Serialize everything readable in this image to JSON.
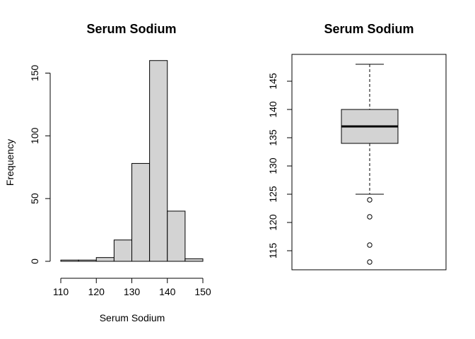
{
  "chart_data": [
    {
      "type": "bar",
      "subtype": "histogram",
      "title": "Serum Sodium",
      "xlabel": "Serum Sodium",
      "ylabel": "Frequency",
      "bins": [
        {
          "from": 110,
          "to": 115,
          "count": 1
        },
        {
          "from": 115,
          "to": 120,
          "count": 1
        },
        {
          "from": 120,
          "to": 125,
          "count": 3
        },
        {
          "from": 125,
          "to": 130,
          "count": 17
        },
        {
          "from": 130,
          "to": 135,
          "count": 78
        },
        {
          "from": 135,
          "to": 140,
          "count": 160
        },
        {
          "from": 140,
          "to": 145,
          "count": 40
        },
        {
          "from": 145,
          "to": 150,
          "count": 2
        }
      ],
      "xlim": [
        110,
        150
      ],
      "ylim": [
        0,
        160
      ],
      "xticks": [
        "110",
        "120",
        "130",
        "140",
        "150"
      ],
      "yticks": [
        "0",
        "50",
        "100",
        "150"
      ],
      "bar_color": "#d3d3d3"
    },
    {
      "type": "boxplot",
      "title": "Serum Sodium",
      "ylim": [
        113,
        148
      ],
      "stats": {
        "whisker_low": 125,
        "q1": 134,
        "median": 137,
        "q3": 140,
        "whisker_high": 148
      },
      "outliers": [
        124,
        121,
        116,
        113
      ],
      "yticks": [
        "115",
        "120",
        "125",
        "130",
        "135",
        "140",
        "145"
      ],
      "box_color": "#d3d3d3"
    }
  ]
}
